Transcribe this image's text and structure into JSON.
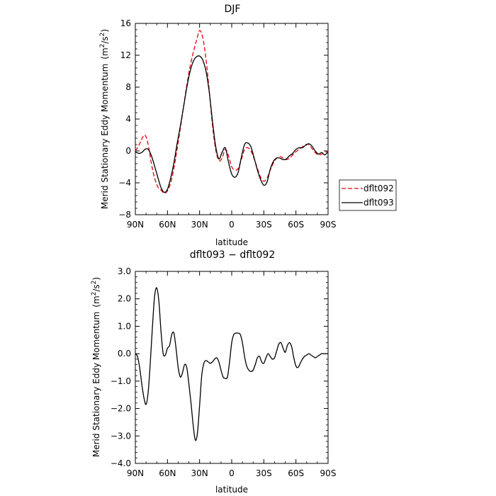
{
  "chart_data": [
    {
      "type": "line",
      "title": "DJF",
      "xlabel": "latitude",
      "ylabel": "Merid Stationary Eddy Momentum",
      "yunit_base": "(m",
      "yunit_sup": "2",
      "yunit_mid": "/s",
      "yunit_sup2": "2",
      "yunit_end": ")",
      "xlim": [
        90,
        -90
      ],
      "ylim": [
        -8,
        16
      ],
      "xticks": [
        90,
        60,
        30,
        0,
        -30,
        -60,
        -90
      ],
      "xticklabels": [
        "90N",
        "60N",
        "30N",
        "0",
        "30S",
        "60S",
        "90S"
      ],
      "yticks": [
        -8,
        -4,
        0,
        4,
        8,
        12,
        16
      ],
      "yticklabels": [
        "−8",
        "−4",
        "0",
        "4",
        "8",
        "12",
        "16"
      ],
      "legend_position": "right",
      "series": [
        {
          "name": "dflt092",
          "color": "#e8000b",
          "dash": "dashed",
          "x": [
            90,
            87,
            84,
            81,
            78,
            75,
            72,
            69,
            66,
            63,
            60,
            57,
            54,
            51,
            48,
            45,
            42,
            39,
            36,
            33,
            30,
            27,
            24,
            21,
            18,
            15,
            12,
            9,
            6,
            3,
            0,
            -3,
            -6,
            -9,
            -12,
            -15,
            -18,
            -21,
            -24,
            -27,
            -30,
            -33,
            -36,
            -39,
            -42,
            -45,
            -48,
            -51,
            -54,
            -57,
            -60,
            -63,
            -66,
            -69,
            -72,
            -75,
            -78,
            -81,
            -84,
            -87,
            -90
          ],
          "y": [
            0.0,
            0.6,
            1.5,
            2.0,
            0.8,
            -1.6,
            -3.4,
            -4.5,
            -4.9,
            -5.3,
            -5.0,
            -4.0,
            -2.2,
            0.2,
            2.8,
            5.5,
            8.2,
            10.5,
            12.3,
            13.8,
            15.1,
            14.2,
            11.5,
            7.6,
            3.3,
            0.2,
            -1.2,
            -0.9,
            0.2,
            -0.6,
            -2.0,
            -2.4,
            -2.2,
            -1.1,
            0.2,
            0.4,
            0.0,
            -1.0,
            -2.2,
            -3.3,
            -3.8,
            -3.4,
            -2.4,
            -1.5,
            -0.9,
            -0.7,
            -0.9,
            -1.1,
            -0.9,
            -0.5,
            -0.1,
            0.2,
            0.5,
            0.8,
            0.8,
            0.3,
            -0.2,
            -0.5,
            -0.4,
            -0.2,
            0.0
          ]
        },
        {
          "name": "dflt093",
          "color": "#000000",
          "dash": "solid",
          "x": [
            90,
            87,
            84,
            81,
            78,
            75,
            72,
            69,
            66,
            63,
            60,
            57,
            54,
            51,
            48,
            45,
            42,
            39,
            36,
            33,
            30,
            27,
            24,
            21,
            18,
            15,
            12,
            9,
            6,
            3,
            0,
            -3,
            -6,
            -9,
            -12,
            -15,
            -18,
            -21,
            -24,
            -27,
            -30,
            -33,
            -36,
            -39,
            -42,
            -45,
            -48,
            -51,
            -54,
            -57,
            -60,
            -63,
            -66,
            -69,
            -72,
            -75,
            -78,
            -81,
            -84,
            -87,
            -90
          ],
          "y": [
            -0.1,
            -0.3,
            -0.2,
            0.2,
            0.2,
            -0.6,
            -1.9,
            -3.3,
            -4.6,
            -5.2,
            -4.8,
            -3.4,
            -1.5,
            0.9,
            3.1,
            5.5,
            7.9,
            9.9,
            11.2,
            11.8,
            11.9,
            11.4,
            10.0,
            7.4,
            3.8,
            0.6,
            -1.0,
            -0.2,
            0.4,
            -1.4,
            -2.9,
            -3.3,
            -2.7,
            -0.8,
            0.8,
            1.0,
            0.5,
            -0.9,
            -2.4,
            -3.6,
            -4.3,
            -3.9,
            -2.3,
            -1.3,
            -0.9,
            -0.9,
            -1.1,
            -1.0,
            -0.6,
            -0.3,
            0.2,
            0.4,
            0.4,
            0.7,
            0.9,
            0.6,
            0.0,
            -0.4,
            -0.2,
            -0.5,
            -0.1
          ]
        }
      ]
    },
    {
      "type": "line",
      "title": "dflt093 − dflt092",
      "xlabel": "latitude",
      "ylabel": "Merid Stationary Eddy Momentum",
      "yunit_base": "(m",
      "yunit_sup": "2",
      "yunit_mid": "/s",
      "yunit_sup2": "2",
      "yunit_end": ")",
      "xlim": [
        90,
        -90
      ],
      "ylim": [
        -4,
        3
      ],
      "xticks": [
        90,
        60,
        30,
        0,
        -30,
        -60,
        -90
      ],
      "xticklabels": [
        "90N",
        "60N",
        "30N",
        "0",
        "30S",
        "60S",
        "90S"
      ],
      "yticks": [
        -4,
        -3,
        -2,
        -1,
        0,
        1,
        2,
        3
      ],
      "yticklabels": [
        "−4.0",
        "−3.0",
        "−2.0",
        "−1.0",
        "0.0",
        "1.0",
        "2.0",
        "3.0"
      ],
      "series": [
        {
          "color": "#000000",
          "dash": "solid",
          "x": [
            90,
            88,
            86,
            84,
            82,
            80,
            78,
            76,
            74,
            72,
            70,
            68,
            66,
            64,
            62,
            60,
            58,
            56,
            54,
            52,
            50,
            48,
            46,
            44,
            42,
            40,
            38,
            36,
            34,
            32,
            30,
            28,
            26,
            24,
            22,
            20,
            18,
            16,
            14,
            12,
            10,
            8,
            6,
            4,
            2,
            0,
            -2,
            -4,
            -6,
            -8,
            -10,
            -12,
            -14,
            -16,
            -18,
            -20,
            -22,
            -24,
            -26,
            -28,
            -30,
            -32,
            -34,
            -36,
            -38,
            -40,
            -42,
            -44,
            -46,
            -48,
            -50,
            -52,
            -54,
            -56,
            -58,
            -60,
            -62,
            -64,
            -66,
            -68,
            -70,
            -72,
            -74,
            -76,
            -78,
            -80,
            -82,
            -84,
            -86,
            -88,
            -90
          ],
          "y": [
            0.0,
            -0.1,
            -0.5,
            -1.1,
            -1.6,
            -1.85,
            -1.4,
            -0.3,
            1.0,
            2.1,
            2.4,
            1.9,
            0.8,
            0.0,
            -0.05,
            0.2,
            0.3,
            0.7,
            0.75,
            0.2,
            -0.5,
            -0.85,
            -0.7,
            -0.4,
            -0.5,
            -1.1,
            -1.8,
            -2.6,
            -3.15,
            -2.9,
            -1.9,
            -0.8,
            -0.35,
            -0.25,
            -0.3,
            -0.35,
            -0.3,
            -0.2,
            -0.15,
            -0.3,
            -0.6,
            -0.85,
            -0.9,
            -0.85,
            -0.3,
            0.4,
            0.7,
            0.75,
            0.75,
            0.7,
            0.4,
            -0.1,
            -0.45,
            -0.6,
            -0.65,
            -0.6,
            -0.4,
            -0.15,
            -0.1,
            -0.3,
            -0.35,
            -0.15,
            0.0,
            -0.1,
            -0.2,
            -0.15,
            0.1,
            0.35,
            0.4,
            0.2,
            0.05,
            0.3,
            0.4,
            0.25,
            -0.15,
            -0.45,
            -0.5,
            -0.35,
            -0.2,
            -0.1,
            -0.05,
            0.0,
            -0.05,
            -0.1,
            -0.15,
            -0.1,
            -0.05,
            0.0,
            0.0,
            0.0,
            0.0
          ]
        }
      ]
    }
  ]
}
